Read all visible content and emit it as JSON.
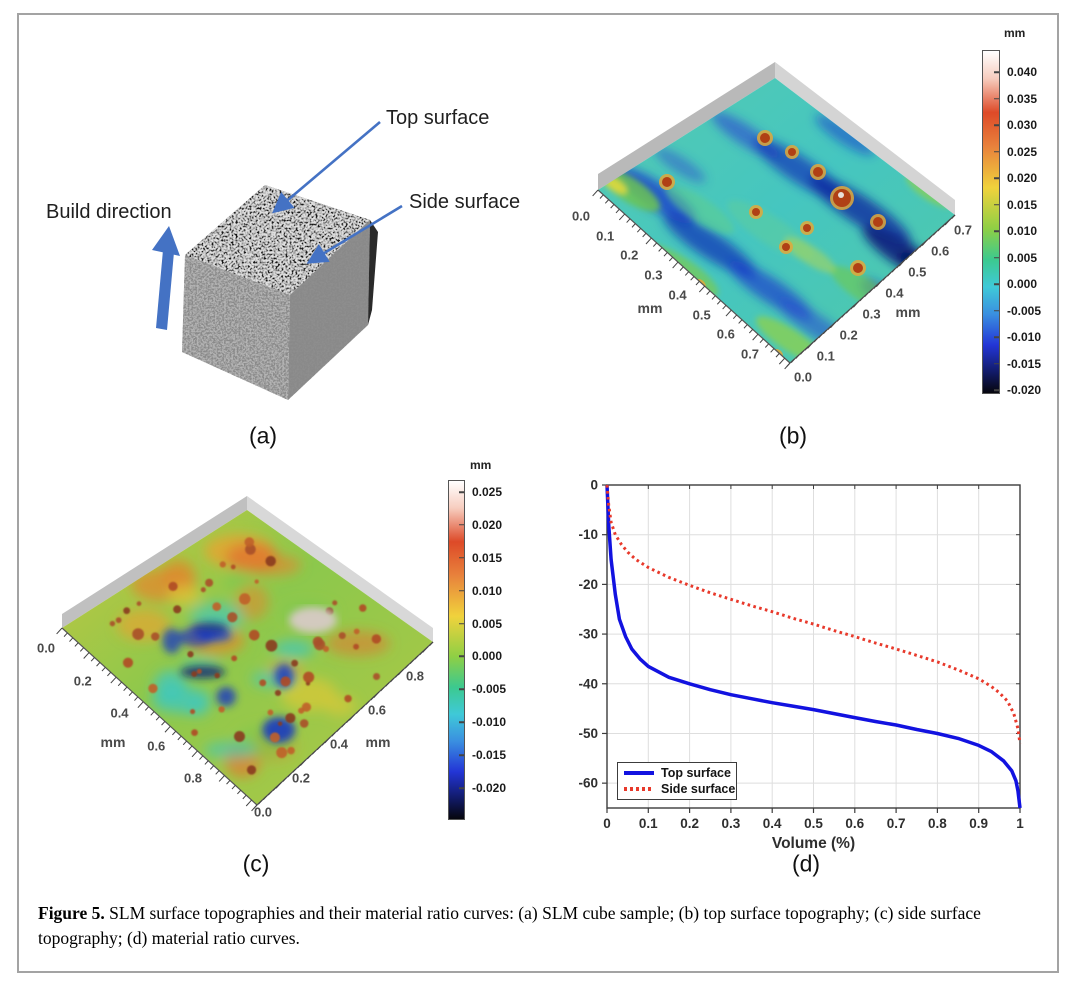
{
  "figure": {
    "caption_label": "Figure 5.",
    "caption_text": " SLM surface topographies and their material ratio curves: (a) SLM cube sample; (b) top surface topography; (c) side surface topography; (d) material ratio curves."
  },
  "colormap": [
    [
      "#ffffff",
      0
    ],
    [
      "#f7cdbf",
      8
    ],
    [
      "#dd4a28",
      18
    ],
    [
      "#e8823c",
      28
    ],
    [
      "#f0d23c",
      40
    ],
    [
      "#8ecf45",
      52
    ],
    [
      "#3cc98f",
      61
    ],
    [
      "#3fc9d8",
      69
    ],
    [
      "#3a8fe0",
      77
    ],
    [
      "#2335d6",
      86
    ],
    [
      "#111a66",
      94
    ],
    [
      "#06060d",
      100
    ]
  ],
  "panel_a": {
    "label": "(a)",
    "top_surface_label": "Top surface",
    "side_surface_label": "Side surface",
    "build_direction_label": "Build direction",
    "arrow_color": "#4472c4"
  },
  "panel_b": {
    "label": "(b)",
    "colorbar": {
      "title": "mm",
      "ticks": [
        "0.040",
        "0.035",
        "0.030",
        "0.025",
        "0.020",
        "0.015",
        "0.010",
        "0.005",
        "0.000",
        "-0.005",
        "-0.010",
        "-0.015",
        "-0.020"
      ]
    },
    "axis_left": {
      "unit": "mm",
      "ticks": [
        "0.0",
        "0.1",
        "0.2",
        "0.3",
        "0.4",
        "0.5",
        "0.6",
        "0.7"
      ]
    },
    "axis_right": {
      "unit": "mm",
      "ticks": [
        "0.0",
        "0.1",
        "0.2",
        "0.3",
        "0.4",
        "0.5",
        "0.6",
        "0.7"
      ]
    }
  },
  "panel_c": {
    "label": "(c)",
    "colorbar": {
      "title": "mm",
      "ticks": [
        "0.025",
        "0.020",
        "0.015",
        "0.010",
        "0.005",
        "0.000",
        "-0.005",
        "-0.010",
        "-0.015",
        "-0.020"
      ]
    },
    "axis_left": {
      "unit": "mm",
      "ticks": [
        "0.0",
        "0.2",
        "0.4",
        "0.6",
        "0.8"
      ]
    },
    "axis_right": {
      "unit": "mm",
      "ticks": [
        "0.0",
        "0.2",
        "0.4",
        "0.6",
        "0.8"
      ]
    }
  },
  "panel_d": {
    "label": "(d)",
    "xlabel": "Volume (%)",
    "x_tick_labels": [
      "0",
      "0.1",
      "0.2",
      "0.3",
      "0.4",
      "0.5",
      "0.6",
      "0.7",
      "0.8",
      "0.9",
      "1"
    ],
    "y_tick_labels": [
      "0",
      "-10",
      "-20",
      "-30",
      "-40",
      "-50",
      "-60"
    ],
    "legend": [
      {
        "label": "Top surface",
        "color": "#1212e0",
        "style": "solid"
      },
      {
        "label": "Side surface",
        "color": "#e8392b",
        "style": "dotted"
      }
    ]
  },
  "chart_data": {
    "type": "line",
    "title": "",
    "xlabel": "Volume (%)",
    "ylabel": "",
    "xlim": [
      0,
      1
    ],
    "ylim": [
      -65,
      0
    ],
    "x_ticks": [
      0,
      0.1,
      0.2,
      0.3,
      0.4,
      0.5,
      0.6,
      0.7,
      0.8,
      0.9,
      1
    ],
    "y_ticks": [
      0,
      -10,
      -20,
      -30,
      -40,
      -50,
      -60
    ],
    "grid": true,
    "legend_position": "bottom-left",
    "series": [
      {
        "name": "Top surface",
        "color": "#1212e0",
        "style": "solid",
        "points": [
          [
            0,
            0
          ],
          [
            0.004,
            -8
          ],
          [
            0.01,
            -15
          ],
          [
            0.02,
            -22
          ],
          [
            0.03,
            -27
          ],
          [
            0.045,
            -30.5
          ],
          [
            0.06,
            -33
          ],
          [
            0.08,
            -35
          ],
          [
            0.1,
            -36.5
          ],
          [
            0.15,
            -38.7
          ],
          [
            0.2,
            -40
          ],
          [
            0.25,
            -41.2
          ],
          [
            0.3,
            -42.2
          ],
          [
            0.35,
            -43
          ],
          [
            0.4,
            -43.8
          ],
          [
            0.45,
            -44.5
          ],
          [
            0.5,
            -45.2
          ],
          [
            0.55,
            -46
          ],
          [
            0.6,
            -46.8
          ],
          [
            0.65,
            -47.6
          ],
          [
            0.7,
            -48.3
          ],
          [
            0.75,
            -49.2
          ],
          [
            0.8,
            -50
          ],
          [
            0.85,
            -51
          ],
          [
            0.9,
            -52.4
          ],
          [
            0.93,
            -53.6
          ],
          [
            0.96,
            -55.5
          ],
          [
            0.98,
            -57.5
          ],
          [
            0.99,
            -59.5
          ],
          [
            0.995,
            -61.5
          ],
          [
            1,
            -65
          ]
        ]
      },
      {
        "name": "Side surface",
        "color": "#e8392b",
        "style": "dotted",
        "points": [
          [
            0,
            0
          ],
          [
            0.004,
            -4
          ],
          [
            0.01,
            -7.5
          ],
          [
            0.02,
            -10
          ],
          [
            0.035,
            -12
          ],
          [
            0.05,
            -13.5
          ],
          [
            0.07,
            -15
          ],
          [
            0.1,
            -16.6
          ],
          [
            0.15,
            -18.6
          ],
          [
            0.2,
            -20.2
          ],
          [
            0.25,
            -21.7
          ],
          [
            0.3,
            -23
          ],
          [
            0.35,
            -24.3
          ],
          [
            0.4,
            -25.5
          ],
          [
            0.45,
            -26.8
          ],
          [
            0.5,
            -28
          ],
          [
            0.55,
            -29.3
          ],
          [
            0.6,
            -30.5
          ],
          [
            0.65,
            -31.8
          ],
          [
            0.7,
            -33
          ],
          [
            0.75,
            -34.3
          ],
          [
            0.8,
            -35.6
          ],
          [
            0.85,
            -37.2
          ],
          [
            0.9,
            -39
          ],
          [
            0.93,
            -40.5
          ],
          [
            0.95,
            -41.8
          ],
          [
            0.97,
            -43.5
          ],
          [
            0.985,
            -46
          ],
          [
            0.995,
            -49
          ],
          [
            1,
            -52
          ]
        ]
      }
    ]
  }
}
